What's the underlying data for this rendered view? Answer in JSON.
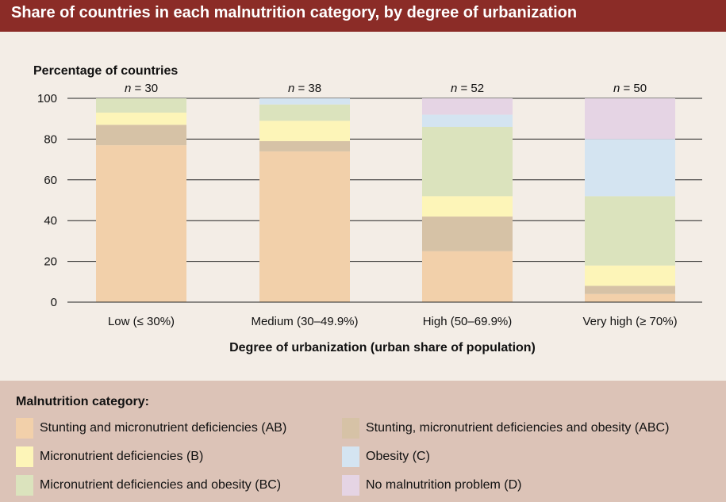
{
  "title": "Share of countries in each malnutrition category, by degree of urbanization",
  "chart_data": {
    "type": "bar",
    "stacked": true,
    "ylabel": "Percentage of countries",
    "xlabel": "Degree of urbanization (urban share of population)",
    "ylim": [
      0,
      100
    ],
    "yticks": [
      0,
      20,
      40,
      60,
      80,
      100
    ],
    "grid": true,
    "categories": [
      "Low (≤ 30%)",
      "Medium (30–49.9%)",
      "High (50–69.9%)",
      "Very high (≥ 70%)"
    ],
    "n_labels": [
      "n = 30",
      "n = 38",
      "n = 52",
      "n = 50"
    ],
    "series": [
      {
        "name": "Stunting and micronutrient deficiencies (AB)",
        "color": "#f2d0aa",
        "values": [
          77,
          74,
          25,
          4
        ]
      },
      {
        "name": "Stunting, micronutrient deficiencies and obesity (ABC)",
        "color": "#d6c2a6",
        "values": [
          10,
          5,
          17,
          4
        ]
      },
      {
        "name": "Micronutrient deficiencies (B)",
        "color": "#fdf5b8",
        "values": [
          6,
          10,
          10,
          10
        ]
      },
      {
        "name": "Micronutrient deficiencies and obesity (BC)",
        "color": "#dbe3bd",
        "values": [
          7,
          8,
          34,
          34
        ]
      },
      {
        "name": "Obesity (C)",
        "color": "#d4e4f1",
        "values": [
          0,
          3,
          6,
          28
        ]
      },
      {
        "name": "No malnutrition problem (D)",
        "color": "#e5d4e4",
        "values": [
          0,
          0,
          8,
          20
        ]
      }
    ]
  },
  "legend": {
    "title": "Malnutrition category:"
  }
}
